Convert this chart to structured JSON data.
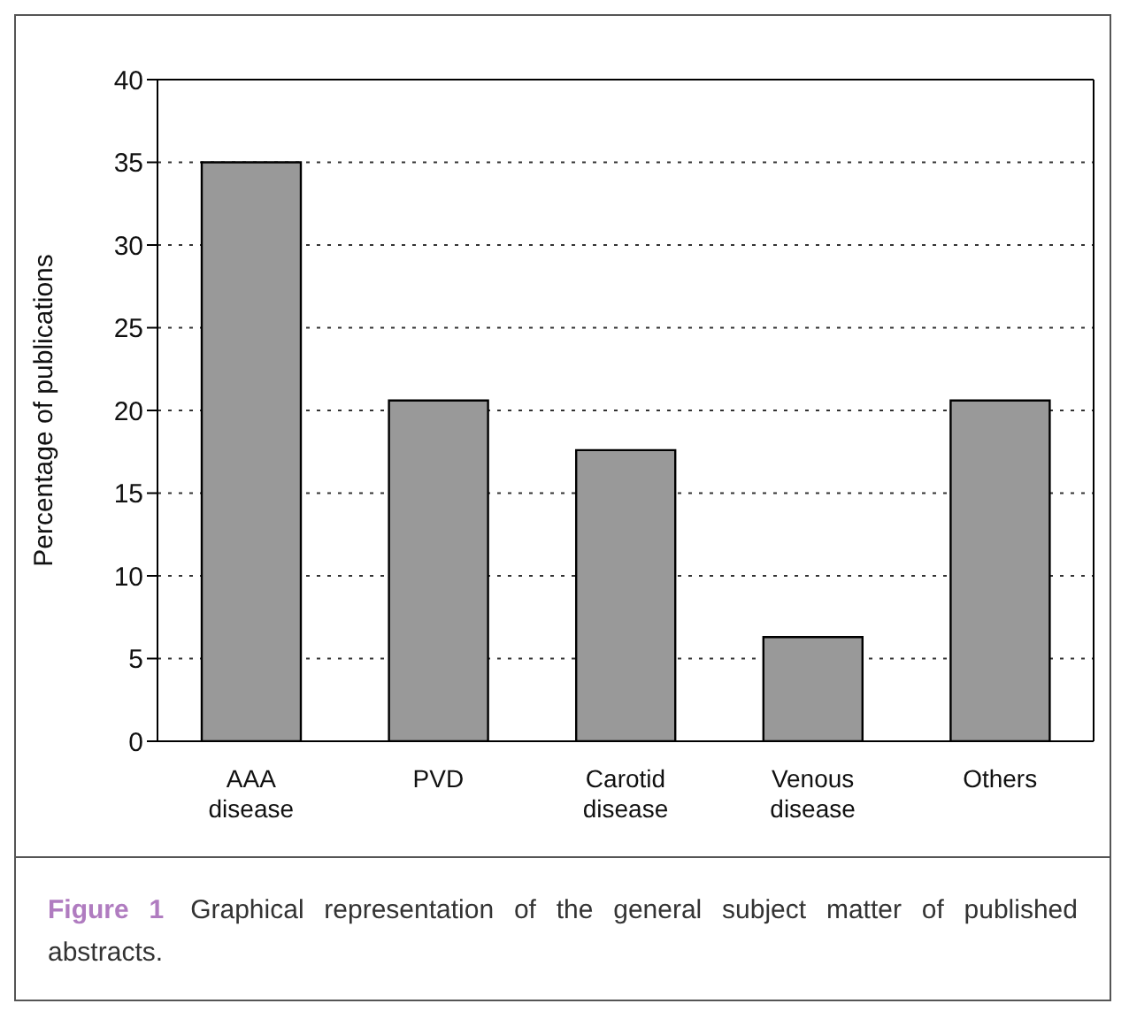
{
  "chart_data": {
    "type": "bar",
    "categories": [
      "AAA disease",
      "PVD",
      "Carotid disease",
      "Venous disease",
      "Others"
    ],
    "values": [
      35,
      20.6,
      17.6,
      6.3,
      20.6
    ],
    "color": "#999999",
    "ylabel": "Percentage of publications",
    "ylim": [
      0,
      40
    ],
    "yticks": [
      0,
      5,
      10,
      15,
      20,
      25,
      30,
      35,
      40
    ],
    "grid": "y",
    "annotations": [
      "Figure 1 Graphical representation of the general subject matter of published abstracts."
    ]
  }
}
